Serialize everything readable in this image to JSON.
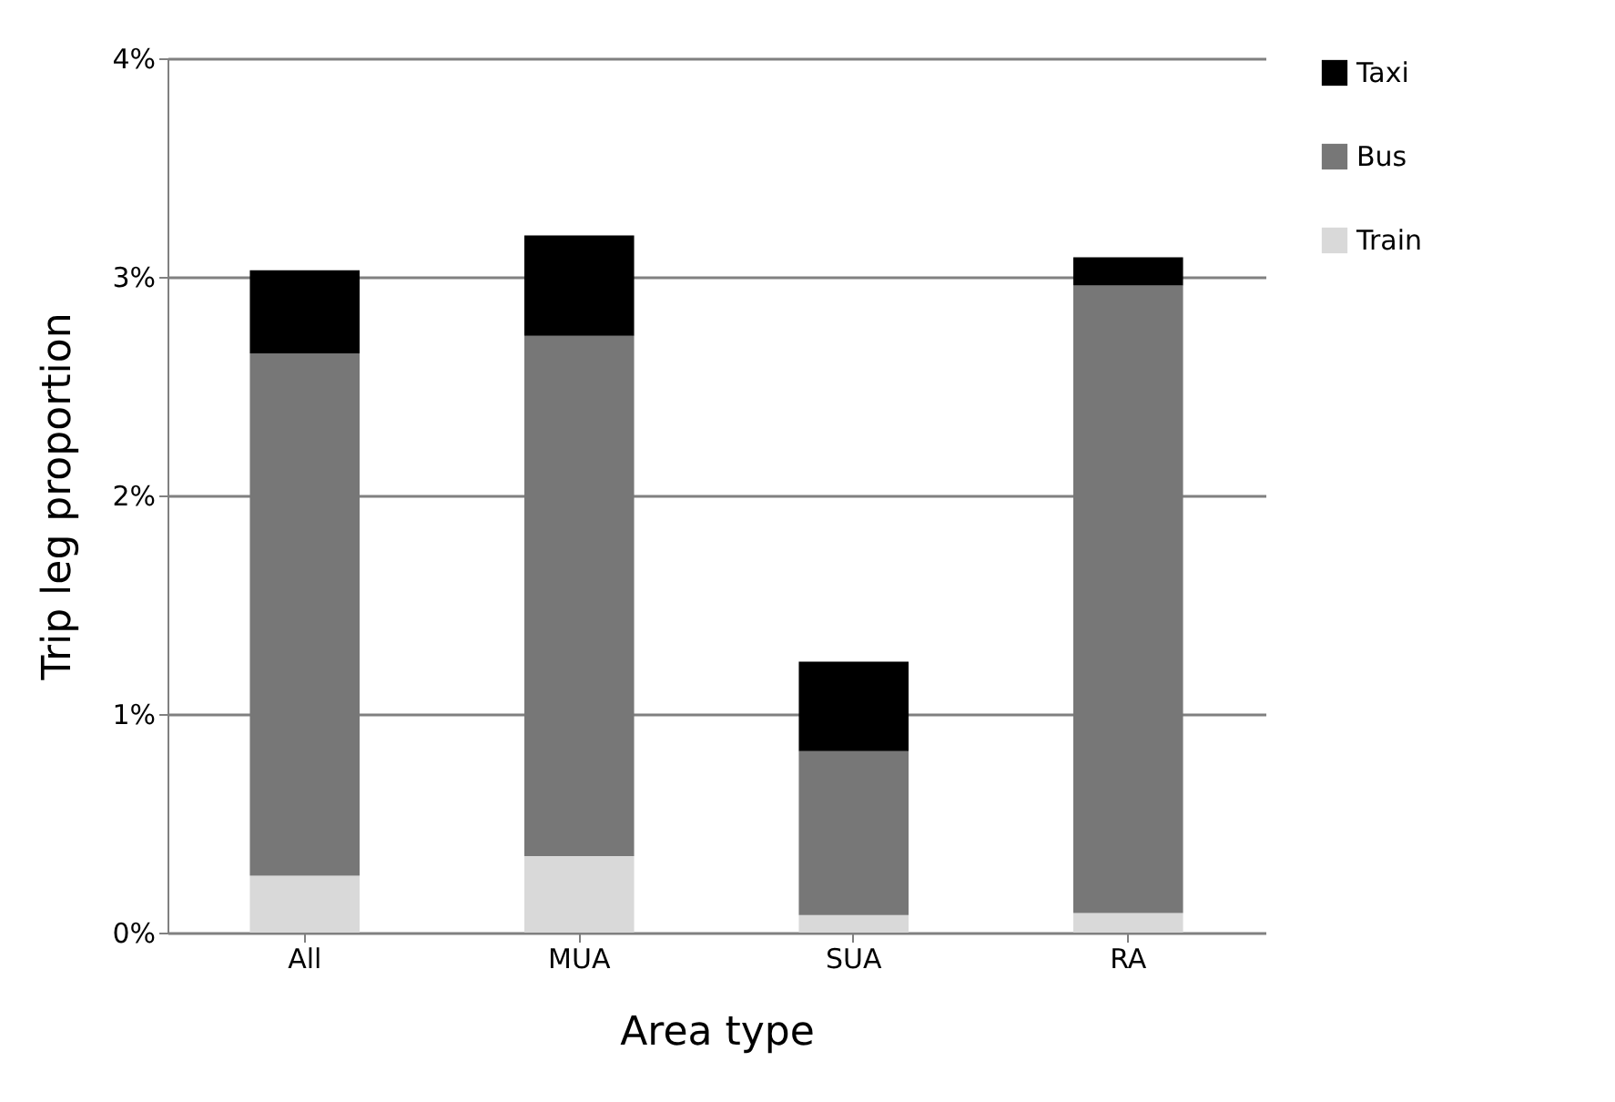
{
  "chart_data": {
    "type": "bar",
    "stacked": true,
    "xlabel": "Area type",
    "ylabel": "Trip leg proportion",
    "categories": [
      "All",
      "MUA",
      "SUA",
      "RA"
    ],
    "series": [
      {
        "name": "Train",
        "color": "#d9d9d9",
        "values": [
          0.26,
          0.35,
          0.08,
          0.09
        ]
      },
      {
        "name": "Bus",
        "color": "#777777",
        "values": [
          2.39,
          2.38,
          0.75,
          2.87
        ]
      },
      {
        "name": "Taxi",
        "color": "#000000",
        "values": [
          0.38,
          0.46,
          0.41,
          0.13
        ]
      }
    ],
    "ylim": [
      0,
      4
    ],
    "yticks": [
      {
        "value": 0,
        "label": "0%"
      },
      {
        "value": 1,
        "label": "1%"
      },
      {
        "value": 2,
        "label": "2%"
      },
      {
        "value": 3,
        "label": "3%"
      },
      {
        "value": 4,
        "label": "4%"
      }
    ],
    "grid": "y",
    "legend": "right"
  }
}
